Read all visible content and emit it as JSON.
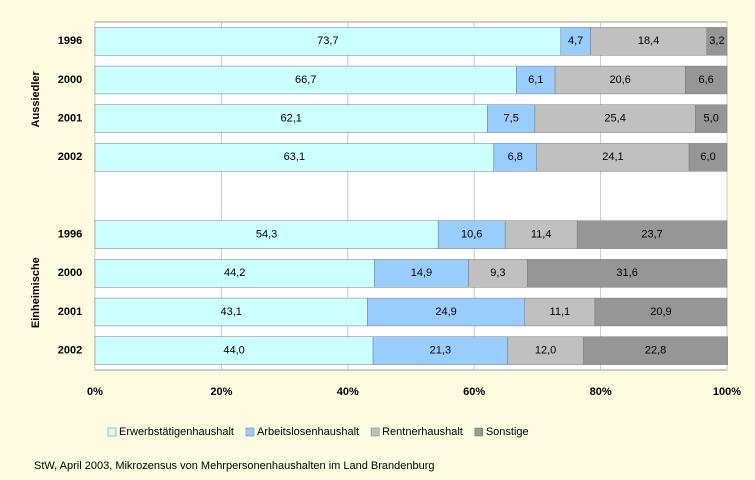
{
  "chart_data": {
    "type": "stacked-bar-horizontal",
    "categories": [
      "1996",
      "2000",
      "2001",
      "2002",
      null,
      "1996",
      "2000",
      "2001",
      "2002"
    ],
    "group_labels": [
      "Aussiedler",
      "Einheimische"
    ],
    "series": [
      {
        "name": "Erwerbstätigenhaushalt",
        "color": "#ccffff",
        "values": [
          73.7,
          66.7,
          62.1,
          63.1,
          null,
          54.3,
          44.2,
          43.1,
          44.0
        ],
        "value_labels": [
          "73,7",
          "66,7",
          "62,1",
          "63,1",
          null,
          "54,3",
          "44,2",
          "43,1",
          "44,0"
        ]
      },
      {
        "name": "Arbeitslosenhaushalt",
        "color": "#99ccff",
        "values": [
          4.7,
          6.1,
          7.5,
          6.8,
          null,
          10.6,
          14.9,
          24.9,
          21.3
        ],
        "value_labels": [
          "4,7",
          "6,1",
          "7,5",
          "6,8",
          null,
          "10,6",
          "14,9",
          "24,9",
          "21,3"
        ]
      },
      {
        "name": "Rentnerhaushalt",
        "color": "#c0c0c0",
        "values": [
          18.4,
          20.6,
          25.4,
          24.1,
          null,
          11.4,
          9.3,
          11.1,
          12.0
        ],
        "value_labels": [
          "18,4",
          "20,6",
          "25,4",
          "24,1",
          null,
          "11,4",
          "9,3",
          "11,1",
          "12,0"
        ]
      },
      {
        "name": "Sonstige",
        "color": "#969696",
        "values": [
          3.2,
          6.6,
          5.0,
          6.0,
          null,
          23.7,
          31.6,
          20.9,
          22.8
        ],
        "value_labels": [
          "3,2",
          "6,6",
          "5,0",
          "6,0",
          null,
          "23,7",
          "31,6",
          "20,9",
          "22,8"
        ]
      }
    ],
    "xlim": [
      0,
      100
    ],
    "xticks": [
      {
        "value": 0,
        "label": "0%"
      },
      {
        "value": 20,
        "label": "20%"
      },
      {
        "value": 40,
        "label": "40%"
      },
      {
        "value": 60,
        "label": "60%"
      },
      {
        "value": 80,
        "label": "80%"
      },
      {
        "value": 100,
        "label": "100%"
      }
    ],
    "grid": true,
    "legend": "bottom",
    "source": "StW, April 2003, Mikrozensus von Mehrpersonenhaushalten im Land Brandenburg"
  }
}
